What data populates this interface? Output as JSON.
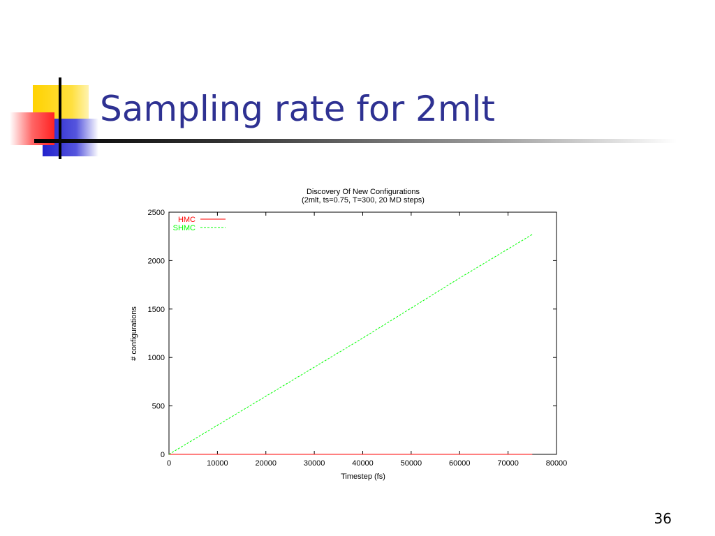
{
  "slide": {
    "title": "Sampling rate for 2mlt",
    "page_number": "36"
  },
  "colors": {
    "title": "#2e3192",
    "decor_yellow": "#ffd700",
    "decor_blue": "#3333cc",
    "decor_red": "#ff3333",
    "hmc": "#ff0000",
    "shmc": "#00ff00"
  },
  "chart_data": {
    "type": "line",
    "title": "Discovery Of New Configurations",
    "subtitle": "(2mlt, ts=0.75, T=300, 20 MD steps)",
    "xlabel": "Timestep (fs)",
    "ylabel": "# configurations",
    "xlim": [
      0,
      80000
    ],
    "ylim": [
      0,
      2500
    ],
    "xticks": [
      "0",
      "10000",
      "20000",
      "30000",
      "40000",
      "50000",
      "60000",
      "70000",
      "80000"
    ],
    "yticks": [
      "0",
      "500",
      "1000",
      "1500",
      "2000",
      "2500"
    ],
    "grid": false,
    "legend_position": "top-left",
    "series": [
      {
        "name": "HMC",
        "color": "#ff0000",
        "dash": "solid",
        "x": [
          0,
          75000
        ],
        "y": [
          0,
          0
        ]
      },
      {
        "name": "SHMC",
        "color": "#00ff00",
        "dash": "dashed",
        "x": [
          0,
          10000,
          20000,
          30000,
          40000,
          50000,
          60000,
          70000,
          75000
        ],
        "y": [
          0,
          300,
          600,
          900,
          1200,
          1510,
          1820,
          2120,
          2270
        ]
      }
    ]
  }
}
